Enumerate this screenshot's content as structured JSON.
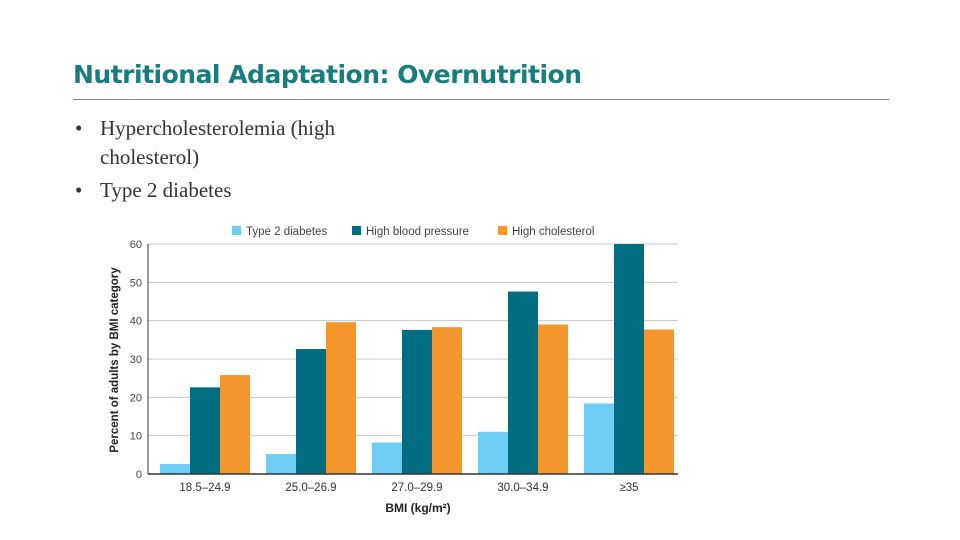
{
  "slide": {
    "title": "Nutritional Adaptation: Overnutrition",
    "bullets": [
      "Hypercholesterolemia (high cholesterol)",
      "Type 2 diabetes"
    ]
  },
  "chart_data": {
    "type": "bar",
    "categories": [
      "18.5–24.9",
      "25.0–26.9",
      "27.0–29.9",
      "30.0–34.9",
      "≥35"
    ],
    "series": [
      {
        "name": "Type 2 diabetes",
        "color": "#6dcdf5",
        "values": [
          2.6,
          5.2,
          8.2,
          11,
          18.4
        ]
      },
      {
        "name": "High blood pressure",
        "color": "#006e80",
        "values": [
          22.6,
          32.6,
          37.6,
          47.6,
          60
        ]
      },
      {
        "name": "High cholesterol",
        "color": "#f4962c",
        "values": [
          25.8,
          39.6,
          38.3,
          39,
          37.7
        ]
      }
    ],
    "xlabel": "BMI (kg/m²)",
    "ylabel": "Percent of adults by BMI category",
    "ylim": [
      0,
      60
    ],
    "yticks": [
      0,
      10,
      20,
      30,
      40,
      50,
      60
    ],
    "grid": true,
    "legend": "top"
  }
}
